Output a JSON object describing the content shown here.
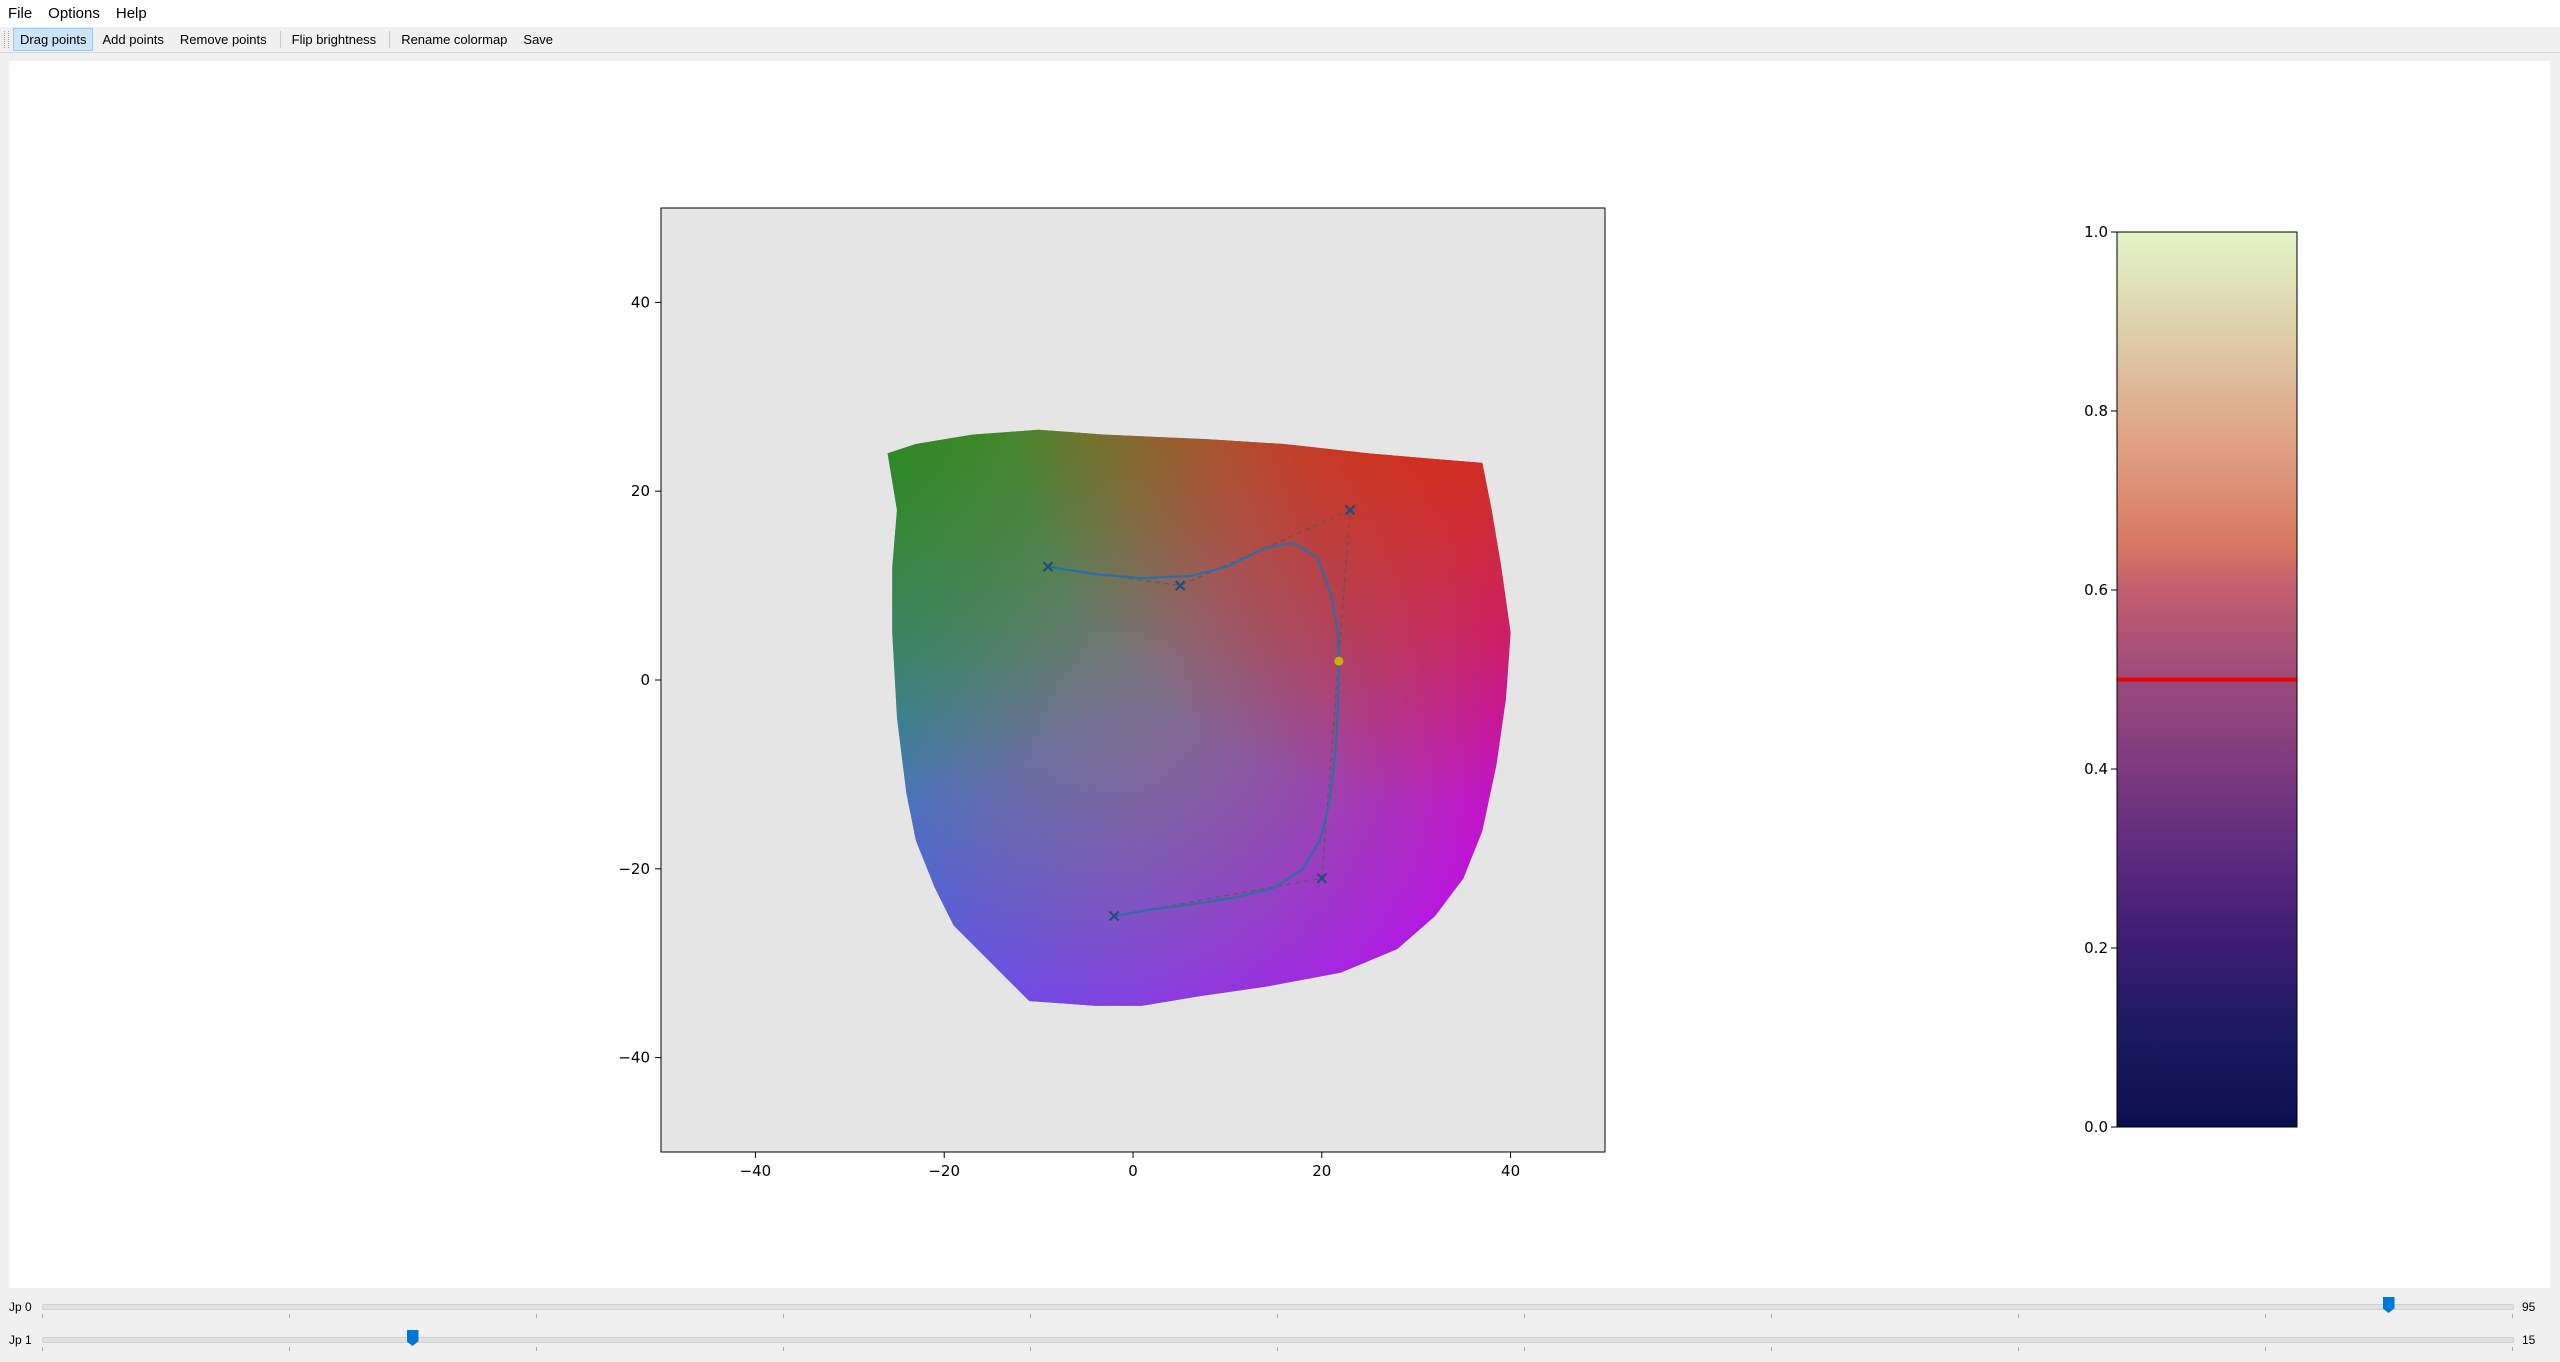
{
  "menubar": {
    "items": [
      "File",
      "Options",
      "Help"
    ]
  },
  "toolbar": {
    "buttons": [
      "Drag points",
      "Add points",
      "Remove points",
      "Flip brightness",
      "Rename colormap",
      "Save"
    ],
    "active_index": 0
  },
  "chart_data": [
    {
      "type": "scatter",
      "title": "",
      "xlabel": "",
      "ylabel": "",
      "xlim": [
        -50,
        50
      ],
      "ylim": [
        -50,
        50
      ],
      "xticks": [
        "−40",
        "−20",
        "0",
        "20",
        "40"
      ],
      "yticks": [
        "−40",
        "−20",
        "0",
        "20",
        "40"
      ],
      "grid": false,
      "background_color": "#e5e5e5",
      "gamut_boundary": [
        [
          -26,
          24
        ],
        [
          -23,
          25
        ],
        [
          -17,
          26
        ],
        [
          -10,
          26.5
        ],
        [
          -3,
          26
        ],
        [
          8,
          25.5
        ],
        [
          16,
          25
        ],
        [
          25,
          24
        ],
        [
          31,
          23.5
        ],
        [
          37,
          23
        ],
        [
          38,
          18
        ],
        [
          39,
          12
        ],
        [
          40,
          5
        ],
        [
          39.5,
          -2
        ],
        [
          38.5,
          -9
        ],
        [
          37,
          -16
        ],
        [
          35,
          -21
        ],
        [
          32,
          -25
        ],
        [
          28,
          -28.5
        ],
        [
          22,
          -31
        ],
        [
          14,
          -32.5
        ],
        [
          7,
          -33.5
        ],
        [
          1,
          -34.5
        ],
        [
          -4,
          -34.5
        ],
        [
          -11,
          -34
        ],
        [
          -13,
          -32
        ],
        [
          -16,
          -29
        ],
        [
          -19,
          -26
        ],
        [
          -21,
          -22
        ],
        [
          -23,
          -17
        ],
        [
          -24,
          -12
        ],
        [
          -25,
          -4
        ],
        [
          -25.5,
          5
        ],
        [
          -25.5,
          12
        ],
        [
          -25,
          18
        ]
      ],
      "gamut_colors": {
        "top_left": "#1f8c10",
        "top_middle": "#9b7a10",
        "top_right": "#d92a0a",
        "right": "#e8005a",
        "bottom_right": "#c800f0",
        "bottom": "#8c50f5",
        "bottom_left": "#0a78ff",
        "left": "#00a070",
        "center": "#7a7a7a"
      },
      "control_points": [
        [
          -9,
          12
        ],
        [
          5,
          10
        ],
        [
          23,
          18
        ],
        [
          20,
          -21
        ],
        [
          -2,
          -25
        ]
      ],
      "control_point_color": "#1f4e79",
      "curve": [
        [
          -9,
          12
        ],
        [
          -4,
          11.2
        ],
        [
          1,
          10.8
        ],
        [
          6,
          11
        ],
        [
          10,
          12
        ],
        [
          14,
          14
        ],
        [
          17,
          14.5
        ],
        [
          19.5,
          13
        ],
        [
          21,
          9
        ],
        [
          21.7,
          5
        ],
        [
          21.8,
          2
        ],
        [
          21.7,
          -3
        ],
        [
          21.4,
          -8
        ],
        [
          20.8,
          -13
        ],
        [
          19.8,
          -17
        ],
        [
          18,
          -20
        ],
        [
          15,
          -22
        ],
        [
          11,
          -23
        ],
        [
          6,
          -23.8
        ],
        [
          2,
          -24.3
        ],
        [
          -2,
          -25
        ]
      ],
      "curve_color": "#2e6da4",
      "highlight_point": [
        21.8,
        2
      ],
      "highlight_color": "#c8b400"
    },
    {
      "type": "heatmap",
      "title": "",
      "ylim": [
        0,
        1
      ],
      "yticks": [
        "0.0",
        "0.2",
        "0.4",
        "0.6",
        "0.8",
        "1.0"
      ],
      "colormap_stops": [
        {
          "v": 0.0,
          "color": "#0b0f4f"
        },
        {
          "v": 0.1,
          "color": "#1a1a5e"
        },
        {
          "v": 0.2,
          "color": "#3b1c72"
        },
        {
          "v": 0.3,
          "color": "#5c2a7e"
        },
        {
          "v": 0.4,
          "color": "#7c3a7f"
        },
        {
          "v": 0.5,
          "color": "#9c4a7c"
        },
        {
          "v": 0.6,
          "color": "#c25e6f"
        },
        {
          "v": 0.65,
          "color": "#d97862"
        },
        {
          "v": 0.75,
          "color": "#df9d7f"
        },
        {
          "v": 0.85,
          "color": "#dec0a0"
        },
        {
          "v": 0.95,
          "color": "#e0e4bb"
        },
        {
          "v": 1.0,
          "color": "#e3f3c4"
        }
      ],
      "marker_value": 0.5,
      "marker_color": "#ee0000"
    }
  ],
  "sliders": [
    {
      "label": "Jp 0",
      "value": "95",
      "position": 0.95
    },
    {
      "label": "Jp 1",
      "value": "15",
      "position": 0.15
    }
  ]
}
